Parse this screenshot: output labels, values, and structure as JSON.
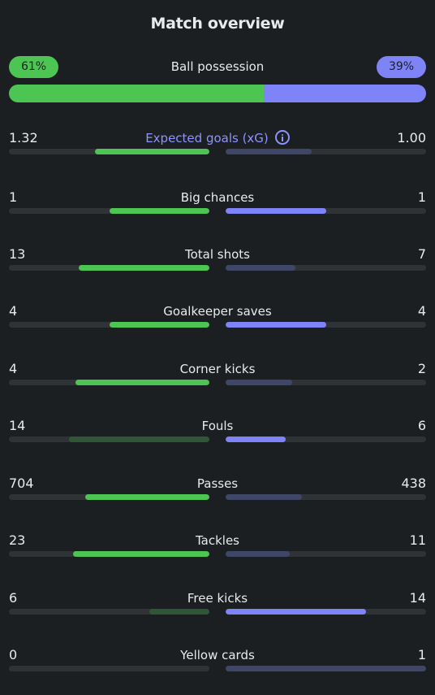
{
  "title": "Match overview",
  "possession": {
    "label": "Ball possession",
    "home": "61%",
    "away": "39%",
    "home_fraction": 0.61
  },
  "colors": {
    "home_strong": "#4cc552",
    "home_weak": "#2f5737",
    "away_strong": "#7e83f7",
    "away_weak": "#404668",
    "track": "#2f3336"
  },
  "stats": [
    {
      "label": "Expected goals (xG)",
      "home": "1.32",
      "away": "1.00",
      "home_fill": 0.57,
      "away_fill": 0.43,
      "home_style": "strong",
      "away_style": "weak",
      "accent": true,
      "icon": "info-icon"
    },
    {
      "label": "Big chances",
      "home": "1",
      "away": "1",
      "home_fill": 0.5,
      "away_fill": 0.5,
      "home_style": "strong",
      "away_style": "strong"
    },
    {
      "label": "Total shots",
      "home": "13",
      "away": "7",
      "home_fill": 0.65,
      "away_fill": 0.35,
      "home_style": "strong",
      "away_style": "weak"
    },
    {
      "label": "Goalkeeper saves",
      "home": "4",
      "away": "4",
      "home_fill": 0.5,
      "away_fill": 0.5,
      "home_style": "strong",
      "away_style": "strong"
    },
    {
      "label": "Corner kicks",
      "home": "4",
      "away": "2",
      "home_fill": 0.67,
      "away_fill": 0.33,
      "home_style": "strong",
      "away_style": "weak"
    },
    {
      "label": "Fouls",
      "home": "14",
      "away": "6",
      "home_fill": 0.7,
      "away_fill": 0.3,
      "home_style": "weak",
      "away_style": "strong"
    },
    {
      "label": "Passes",
      "home": "704",
      "away": "438",
      "home_fill": 0.62,
      "away_fill": 0.38,
      "home_style": "strong",
      "away_style": "weak"
    },
    {
      "label": "Tackles",
      "home": "23",
      "away": "11",
      "home_fill": 0.68,
      "away_fill": 0.32,
      "home_style": "strong",
      "away_style": "weak"
    },
    {
      "label": "Free kicks",
      "home": "6",
      "away": "14",
      "home_fill": 0.3,
      "away_fill": 0.7,
      "home_style": "weak",
      "away_style": "strong"
    },
    {
      "label": "Yellow cards",
      "home": "0",
      "away": "1",
      "home_fill": 0.0,
      "away_fill": 1.0,
      "home_style": "weak",
      "away_style": "weak"
    }
  ]
}
